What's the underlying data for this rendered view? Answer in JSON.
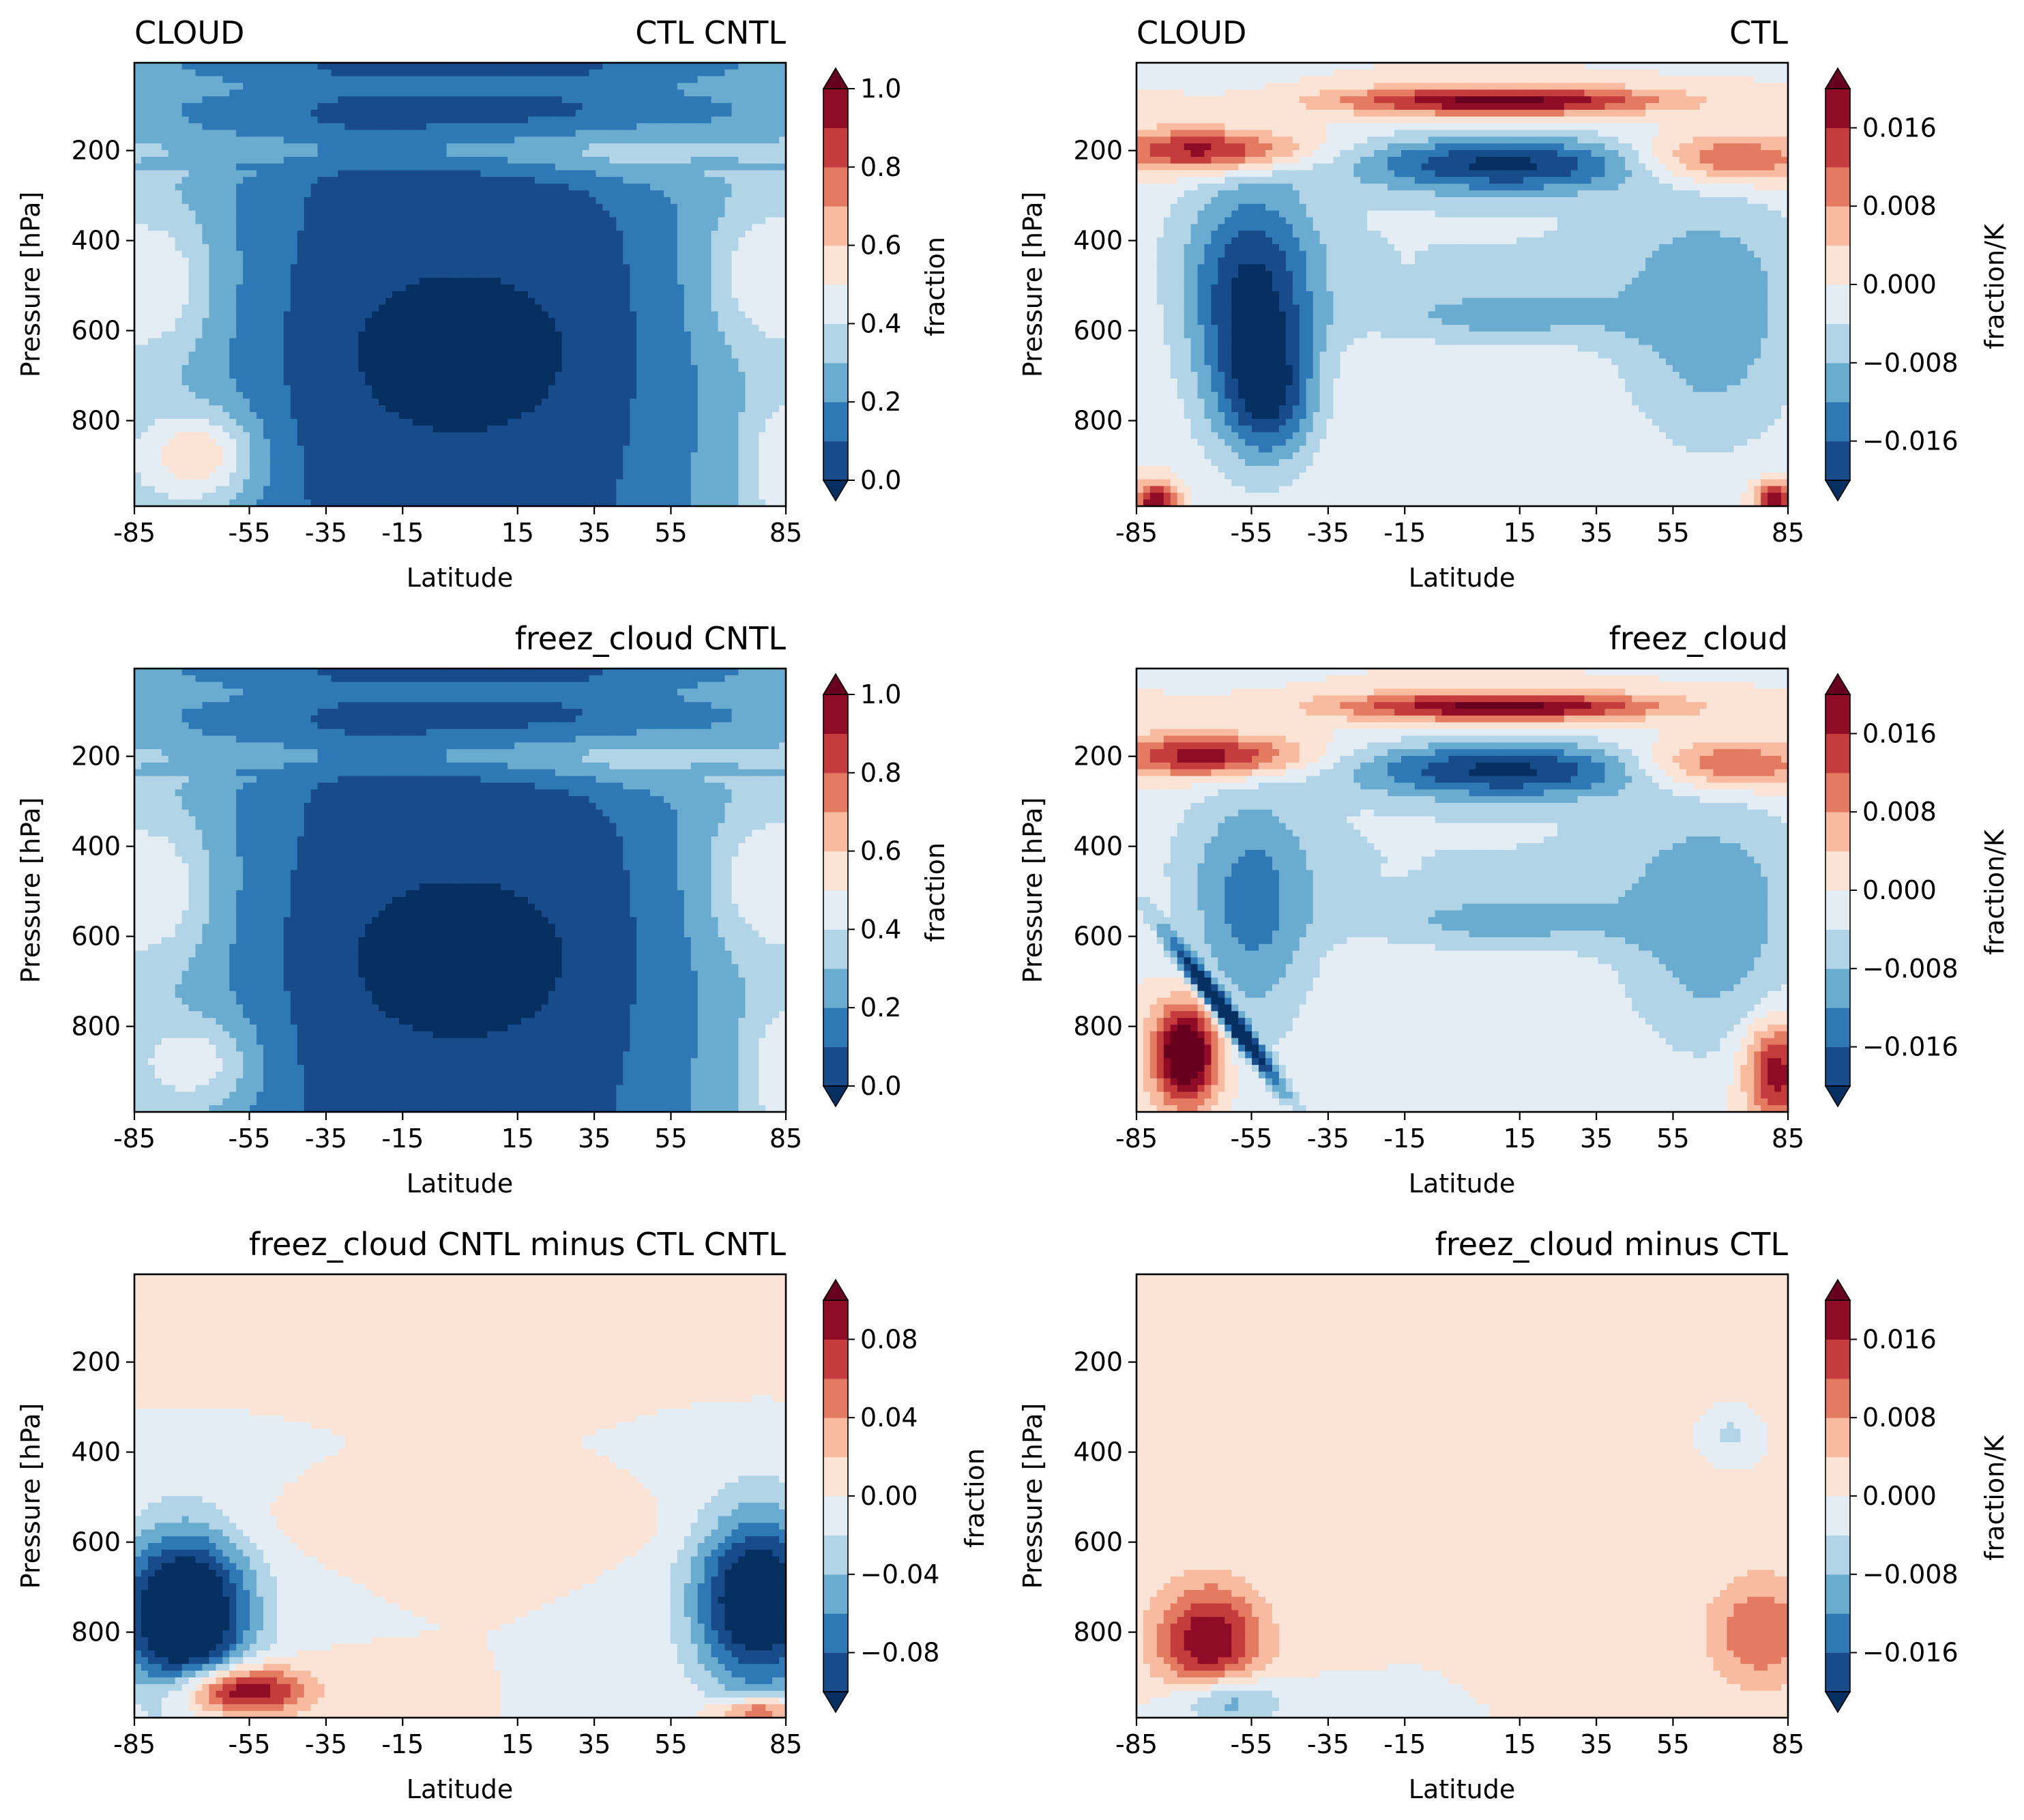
{
  "figure": {
    "x_ticks": [
      "-85",
      "-55",
      "-35",
      "-15",
      "15",
      "35",
      "55",
      "85"
    ],
    "y_ticks": [
      "200",
      "400",
      "600",
      "800"
    ],
    "xlabel": "Latitude",
    "ylabel": "Pressure [hPa]"
  },
  "colormap": [
    "#053061",
    "#174b89",
    "#2e79b5",
    "#6aacd0",
    "#b2d4e7",
    "#e3edf3",
    "#fbe4d6",
    "#f8bba0",
    "#e47a61",
    "#c43c3c",
    "#900b26",
    "#67001f"
  ],
  "chart_data": [
    {
      "type": "contourf",
      "panel": "top-left",
      "title_left": "CLOUD",
      "title_right": "CTL CNTL",
      "xlabel": "Latitude",
      "ylabel": "Pressure [hPa]",
      "x_ticks": [
        -85,
        -55,
        -35,
        -15,
        15,
        35,
        55,
        85
      ],
      "y_ticks": [
        200,
        400,
        600,
        800
      ],
      "xlim": [
        -85,
        85
      ],
      "ylim": [
        990,
        5
      ],
      "colorbar_label": "fraction",
      "colorbar_ticks": [
        "0.0",
        "0.2",
        "0.4",
        "0.6",
        "0.8",
        "1.0"
      ],
      "levels": [
        0.0,
        1.0
      ],
      "field": "cntl",
      "variant": "ctl"
    },
    {
      "type": "contourf",
      "panel": "top-right",
      "title_left": "CLOUD",
      "title_right": "CTL",
      "xlabel": "Latitude",
      "ylabel": "Pressure [hPa]",
      "x_ticks": [
        -85,
        -55,
        -35,
        -15,
        15,
        35,
        55,
        85
      ],
      "y_ticks": [
        200,
        400,
        600,
        800
      ],
      "xlim": [
        -85,
        85
      ],
      "ylim": [
        990,
        5
      ],
      "colorbar_label": "fraction/K",
      "colorbar_ticks": [
        "−0.016",
        "−0.008",
        "0.000",
        "0.008",
        "0.016"
      ],
      "levels": [
        -0.02,
        0.02
      ],
      "field": "resp",
      "variant": "ctl"
    },
    {
      "type": "contourf",
      "panel": "middle-left",
      "title_left": "",
      "title_right": "freez_cloud CNTL",
      "xlabel": "Latitude",
      "ylabel": "Pressure [hPa]",
      "x_ticks": [
        -85,
        -55,
        -35,
        -15,
        15,
        35,
        55,
        85
      ],
      "y_ticks": [
        200,
        400,
        600,
        800
      ],
      "xlim": [
        -85,
        85
      ],
      "ylim": [
        990,
        5
      ],
      "colorbar_label": "fraction",
      "colorbar_ticks": [
        "0.0",
        "0.2",
        "0.4",
        "0.6",
        "0.8",
        "1.0"
      ],
      "levels": [
        0.0,
        1.0
      ],
      "field": "cntl",
      "variant": "freez"
    },
    {
      "type": "contourf",
      "panel": "middle-right",
      "title_left": "",
      "title_right": "freez_cloud",
      "xlabel": "Latitude",
      "ylabel": "Pressure [hPa]",
      "x_ticks": [
        -85,
        -55,
        -35,
        -15,
        15,
        35,
        55,
        85
      ],
      "y_ticks": [
        200,
        400,
        600,
        800
      ],
      "xlim": [
        -85,
        85
      ],
      "ylim": [
        990,
        5
      ],
      "colorbar_label": "fraction/K",
      "colorbar_ticks": [
        "−0.016",
        "−0.008",
        "0.000",
        "0.008",
        "0.016"
      ],
      "levels": [
        -0.02,
        0.02
      ],
      "field": "resp",
      "variant": "freez"
    },
    {
      "type": "contourf",
      "panel": "bottom-left",
      "title_left": "",
      "title_right": "freez_cloud CNTL minus CTL CNTL",
      "xlabel": "Latitude",
      "ylabel": "Pressure [hPa]",
      "x_ticks": [
        -85,
        -55,
        -35,
        -15,
        15,
        35,
        55,
        85
      ],
      "y_ticks": [
        200,
        400,
        600,
        800
      ],
      "xlim": [
        -85,
        85
      ],
      "ylim": [
        990,
        5
      ],
      "colorbar_label": "fraction",
      "colorbar_ticks": [
        "−0.08",
        "−0.04",
        "0.00",
        "0.04",
        "0.08"
      ],
      "levels": [
        -0.1,
        0.1
      ],
      "field": "dcntl",
      "variant": "diff"
    },
    {
      "type": "contourf",
      "panel": "bottom-right",
      "title_left": "",
      "title_right": "freez_cloud minus CTL",
      "xlabel": "Latitude",
      "ylabel": "Pressure [hPa]",
      "x_ticks": [
        -85,
        -55,
        -35,
        -15,
        15,
        35,
        55,
        85
      ],
      "y_ticks": [
        200,
        400,
        600,
        800
      ],
      "xlim": [
        -85,
        85
      ],
      "ylim": [
        990,
        5
      ],
      "colorbar_label": "fraction/K",
      "colorbar_ticks": [
        "−0.016",
        "−0.008",
        "0.000",
        "0.008",
        "0.016"
      ],
      "levels": [
        -0.02,
        0.02
      ],
      "field": "dresp",
      "variant": "diff"
    }
  ]
}
